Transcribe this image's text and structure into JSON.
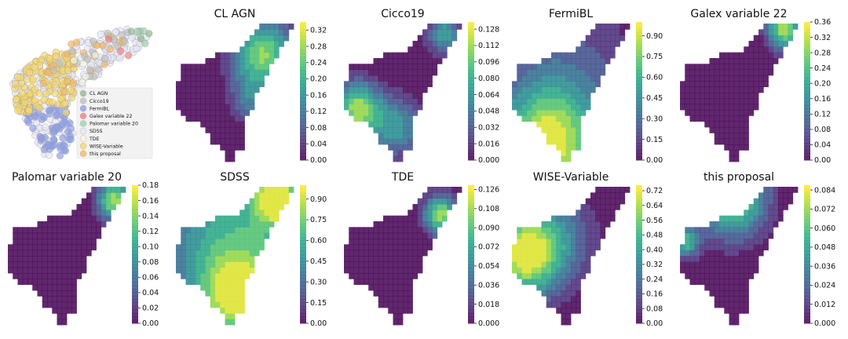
{
  "colors": {
    "viridis": [
      "#440154",
      "#472c7a",
      "#3b518b",
      "#2c718e",
      "#21908d",
      "#27ad81",
      "#5cc863",
      "#aadc32",
      "#fde725"
    ],
    "outside": "#ffffff"
  },
  "chart_data": [
    {
      "type": "scatter",
      "legend": {
        "position": "lower-right",
        "entries": [
          {
            "label": "CL AGN",
            "color": "#8fbc8f"
          },
          {
            "label": "Cicco19",
            "color": "#c0c0c0"
          },
          {
            "label": "FermiBL",
            "color": "#8e9fe8"
          },
          {
            "label": "Galex variable 22",
            "color": "#f08080"
          },
          {
            "label": "Palomar variable 20",
            "color": "#9fd3b0"
          },
          {
            "label": "SDSS",
            "color": "#e6e6fa"
          },
          {
            "label": "TDE",
            "color": "#f5f5dc"
          },
          {
            "label": "WISE-Variable",
            "color": "#f5d76e"
          },
          {
            "label": "this proposal",
            "color": "#f4b860"
          }
        ]
      }
    },
    {
      "type": "heatmap",
      "title": "CL AGN",
      "colorbar_ticks": [
        "0.00",
        "0.04",
        "0.08",
        "0.12",
        "0.16",
        "0.20",
        "0.24",
        "0.28",
        "0.32"
      ],
      "vmax": 0.34,
      "hotspots": [
        [
          0.62,
          0.45,
          0.12,
          0.35
        ],
        [
          0.74,
          0.78,
          0.18,
          0.9
        ]
      ]
    },
    {
      "type": "heatmap",
      "title": "Cicco19",
      "colorbar_ticks": [
        "0.000",
        "0.016",
        "0.032",
        "0.048",
        "0.064",
        "0.080",
        "0.096",
        "0.112",
        "0.128"
      ],
      "vmax": 0.135,
      "hotspots": [
        [
          0.12,
          0.38,
          0.14,
          0.95
        ],
        [
          0.45,
          0.25,
          0.15,
          0.55
        ],
        [
          0.85,
          0.92,
          0.1,
          0.6
        ]
      ]
    },
    {
      "type": "heatmap",
      "title": "FermiBL",
      "colorbar_ticks": [
        "0.00",
        "0.15",
        "0.30",
        "0.45",
        "0.60",
        "0.75",
        "0.90"
      ],
      "vmax": 1.0,
      "hotspots": [
        [
          0.3,
          0.12,
          0.28,
          0.95
        ],
        [
          0.45,
          0.55,
          0.45,
          0.32
        ]
      ]
    },
    {
      "type": "heatmap",
      "title": "Galex variable 22",
      "colorbar_ticks": [
        "0.00",
        "0.04",
        "0.08",
        "0.12",
        "0.16",
        "0.20",
        "0.24",
        "0.28",
        "0.32",
        "0.36"
      ],
      "vmax": 0.36,
      "hotspots": [
        [
          0.88,
          0.96,
          0.1,
          0.95
        ]
      ]
    },
    {
      "type": "heatmap",
      "title": "Palomar variable 20",
      "colorbar_ticks": [
        "0.00",
        "0.02",
        "0.04",
        "0.06",
        "0.08",
        "0.10",
        "0.12",
        "0.14",
        "0.16",
        "0.18"
      ],
      "vmax": 0.18,
      "hotspots": [
        [
          0.9,
          0.9,
          0.1,
          0.95
        ]
      ]
    },
    {
      "type": "heatmap",
      "title": "SDSS",
      "colorbar_ticks": [
        "0.00",
        "0.15",
        "0.30",
        "0.45",
        "0.60",
        "0.75",
        "0.90"
      ],
      "vmax": 1.0,
      "hotspots": [
        [
          0.55,
          0.55,
          0.5,
          0.75
        ],
        [
          0.85,
          0.92,
          0.12,
          0.95
        ],
        [
          0.5,
          0.2,
          0.2,
          0.65
        ]
      ]
    },
    {
      "type": "heatmap",
      "title": "TDE",
      "colorbar_ticks": [
        "0.000",
        "0.018",
        "0.036",
        "0.054",
        "0.072",
        "0.090",
        "0.108",
        "0.126"
      ],
      "vmax": 0.13,
      "hotspots": [
        [
          0.82,
          0.8,
          0.1,
          0.95
        ]
      ]
    },
    {
      "type": "heatmap",
      "title": "WISE-Variable",
      "colorbar_ticks": [
        "0.00",
        "0.08",
        "0.16",
        "0.24",
        "0.32",
        "0.40",
        "0.48",
        "0.56",
        "0.64",
        "0.72"
      ],
      "vmax": 0.75,
      "hotspots": [
        [
          0.1,
          0.5,
          0.2,
          0.95
        ],
        [
          0.35,
          0.62,
          0.25,
          0.45
        ]
      ]
    },
    {
      "type": "heatmap",
      "title": "this proposal",
      "colorbar_ticks": [
        "0.000",
        "0.012",
        "0.024",
        "0.036",
        "0.048",
        "0.060",
        "0.072",
        "0.084"
      ],
      "vmax": 0.087,
      "hotspots": [
        [
          0.45,
          0.92,
          0.2,
          0.95
        ],
        [
          0.05,
          0.6,
          0.08,
          0.7
        ]
      ]
    }
  ]
}
